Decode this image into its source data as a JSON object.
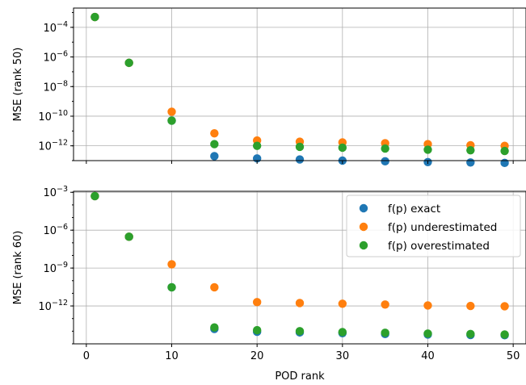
{
  "chart_data": [
    {
      "type": "scatter",
      "ylabel": "MSE (rank 50)",
      "yscale": "log",
      "ylim": [
        1e-13,
        0.002
      ],
      "xlim": [
        -1.5,
        51.5
      ],
      "y_ticks": [
        {
          "value": 0.0001,
          "base": "10",
          "exp": "−4"
        },
        {
          "value": 1e-06,
          "base": "10",
          "exp": "−6"
        },
        {
          "value": 1e-08,
          "base": "10",
          "exp": "−8"
        },
        {
          "value": 1e-10,
          "base": "10",
          "exp": "−10"
        },
        {
          "value": 1e-12,
          "base": "10",
          "exp": "−12"
        }
      ],
      "x_ticks": [
        0,
        10,
        20,
        30,
        40,
        50
      ],
      "show_x_tick_labels": false,
      "grid": true,
      "x": [
        1,
        5,
        10,
        15,
        20,
        25,
        30,
        35,
        40,
        45,
        49
      ],
      "series": [
        {
          "name": "f(p) exact",
          "color": "#1f77b4",
          "values": [
            0.0005,
            4e-07,
            5e-11,
            2e-13,
            1.4e-13,
            1.2e-13,
            1e-13,
            9e-14,
            8e-14,
            7.5e-14,
            7e-14
          ]
        },
        {
          "name": "f(p) underestimated",
          "color": "#ff7f0e",
          "values": [
            0.0005,
            4e-07,
            2e-10,
            7e-12,
            2.3e-12,
            1.9e-12,
            1.7e-12,
            1.5e-12,
            1.3e-12,
            1.1e-12,
            1e-12
          ]
        },
        {
          "name": "f(p) overestimated",
          "color": "#2ca02c",
          "values": [
            0.0005,
            4e-07,
            5e-11,
            1.3e-12,
            1e-12,
            8.5e-13,
            7.5e-13,
            6.5e-13,
            5.5e-13,
            5e-13,
            4.5e-13
          ]
        }
      ]
    },
    {
      "type": "scatter",
      "ylabel": "MSE (rank 60)",
      "xlabel": "POD rank",
      "yscale": "log",
      "ylim": [
        1e-15,
        0.0012
      ],
      "xlim": [
        -1.5,
        51.5
      ],
      "y_ticks": [
        {
          "value": 0.001,
          "base": "10",
          "exp": "−3"
        },
        {
          "value": 1e-06,
          "base": "10",
          "exp": "−6"
        },
        {
          "value": 1e-09,
          "base": "10",
          "exp": "−9"
        },
        {
          "value": 1e-12,
          "base": "10",
          "exp": "−12"
        }
      ],
      "x_ticks": [
        0,
        10,
        20,
        30,
        40,
        50
      ],
      "show_x_tick_labels": true,
      "grid": true,
      "legend": "top-right",
      "x": [
        1,
        5,
        10,
        15,
        20,
        25,
        30,
        35,
        40,
        45,
        49
      ],
      "series": [
        {
          "name": "f(p) exact",
          "color": "#1f77b4",
          "values": [
            0.0005,
            3e-07,
            3e-11,
            1.5e-14,
            9e-15,
            8e-15,
            7e-15,
            6e-15,
            5.5e-15,
            5e-15,
            4.8e-15
          ]
        },
        {
          "name": "f(p) underestimated",
          "color": "#ff7f0e",
          "values": [
            0.0005,
            3e-07,
            2e-09,
            3e-11,
            2e-12,
            1.7e-12,
            1.5e-12,
            1.3e-12,
            1.1e-12,
            1e-12,
            9.5e-13
          ]
        },
        {
          "name": "f(p) overestimated",
          "color": "#2ca02c",
          "values": [
            0.0005,
            3e-07,
            3e-11,
            2e-14,
            1.2e-14,
            1e-14,
            8.5e-15,
            7.5e-15,
            6.5e-15,
            6e-15,
            5.5e-15
          ]
        }
      ]
    }
  ]
}
